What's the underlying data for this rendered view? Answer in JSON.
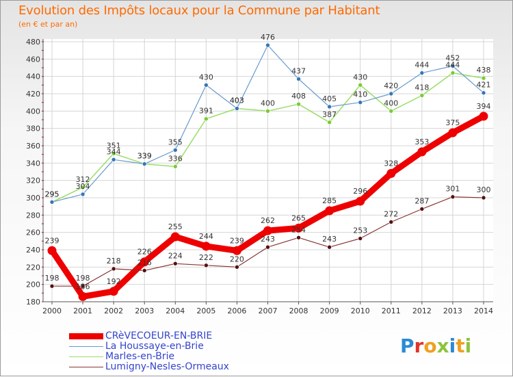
{
  "title": "Evolution des Impôts locaux pour la Commune par Habitant",
  "subtitle": "(en € et par an)",
  "brand": "Proxiti",
  "chart_data": {
    "type": "line",
    "title": "Evolution des Impôts locaux pour la Commune par Habitant",
    "ylabel": "(en € et par an)",
    "xlabel": "",
    "ylim": [
      180,
      480
    ],
    "yticks": [
      180,
      200,
      220,
      240,
      260,
      280,
      300,
      320,
      340,
      360,
      380,
      400,
      420,
      440,
      460,
      480
    ],
    "x": [
      "2000",
      "2001",
      "2002",
      "2003",
      "2004",
      "2005",
      "2006",
      "2007",
      "2008",
      "2009",
      "2010",
      "2011",
      "2012",
      "2013",
      "2014"
    ],
    "grid": true,
    "series": [
      {
        "name": "CRèVECOEUR-EN-BRIE",
        "color": "#ee0000",
        "dot": "#ee0000",
        "values": [
          239,
          186,
          192,
          226,
          255,
          244,
          239,
          262,
          265,
          285,
          296,
          328,
          353,
          375,
          394
        ]
      },
      {
        "name": "La Houssaye-en-Brie",
        "color": "#6699cc",
        "dot": "#3377bb",
        "values": [
          295,
          304,
          344,
          339,
          355,
          430,
          403,
          476,
          437,
          405,
          410,
          420,
          444,
          452,
          421
        ]
      },
      {
        "name": "Marles-en-Brie",
        "color": "#99dd66",
        "dot": "#77cc33",
        "values": [
          295,
          312,
          351,
          339,
          336,
          391,
          403,
          400,
          408,
          387,
          430,
          400,
          418,
          444,
          438
        ]
      },
      {
        "name": "Lumigny-Nesles-Ormeaux",
        "color": "#883333",
        "dot": "#551111",
        "values": [
          198,
          198,
          218,
          216,
          224,
          222,
          220,
          243,
          254,
          243,
          253,
          272,
          287,
          301,
          300
        ]
      }
    ]
  }
}
